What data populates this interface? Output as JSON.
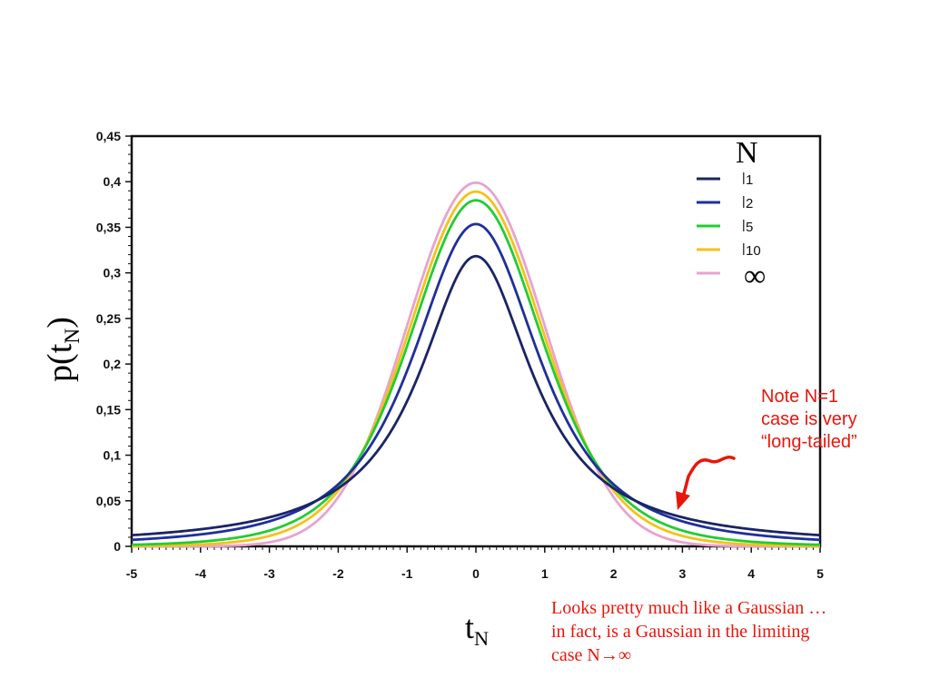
{
  "chart_data": {
    "type": "line",
    "xlabel": "t",
    "xlabel_sub": "N",
    "ylabel": "p(t",
    "ylabel_sub": "N",
    "ylabel_close": ")",
    "xlim": [
      -5,
      5
    ],
    "ylim": [
      0,
      0.45
    ],
    "x_ticks": [
      "-5",
      "-4",
      "-3",
      "-2",
      "-1",
      "0",
      "1",
      "2",
      "3",
      "4",
      "5"
    ],
    "y_ticks": [
      "0",
      "0,05",
      "0,1",
      "0,15",
      "0,2",
      "0,25",
      "0,3",
      "0,35",
      "0,4",
      "0,45"
    ],
    "legend_title": "N",
    "legend_placement": "top-right",
    "series": [
      {
        "name": "1",
        "color": "#1a2466",
        "df": 1,
        "x": [
          -5,
          -4,
          -3,
          -2,
          -1,
          0,
          1,
          2,
          3,
          4,
          5
        ],
        "y": [
          0.012,
          0.019,
          0.032,
          0.064,
          0.159,
          0.318,
          0.159,
          0.064,
          0.032,
          0.019,
          0.012
        ]
      },
      {
        "name": "2",
        "color": "#1f2f9c",
        "df": 2,
        "x": [
          -5,
          -4,
          -3,
          -2,
          -1,
          0,
          1,
          2,
          3,
          4,
          5
        ],
        "y": [
          0.007,
          0.013,
          0.027,
          0.068,
          0.192,
          0.354,
          0.192,
          0.068,
          0.027,
          0.013,
          0.007
        ]
      },
      {
        "name": "5",
        "color": "#22cc33",
        "df": 5,
        "x": [
          -5,
          -4,
          -3,
          -2,
          -1,
          0,
          1,
          2,
          3,
          4,
          5
        ],
        "y": [
          0.002,
          0.005,
          0.017,
          0.065,
          0.22,
          0.38,
          0.22,
          0.065,
          0.017,
          0.005,
          0.002
        ]
      },
      {
        "name": "10",
        "color": "#f2c318",
        "df": 10,
        "x": [
          -5,
          -4,
          -3,
          -2,
          -1,
          0,
          1,
          2,
          3,
          4,
          5
        ],
        "y": [
          0.0,
          0.002,
          0.011,
          0.061,
          0.23,
          0.389,
          0.23,
          0.061,
          0.011,
          0.002,
          0.0
        ]
      },
      {
        "name": "∞",
        "color": "#e8a3cf",
        "df": null,
        "x": [
          -5,
          -4,
          -3,
          -2,
          -1,
          0,
          1,
          2,
          3,
          4,
          5
        ],
        "y": [
          0.0,
          0.0,
          0.004,
          0.054,
          0.242,
          0.399,
          0.242,
          0.054,
          0.004,
          0.0,
          0.0
        ]
      }
    ],
    "legend_labels": [
      "1",
      "2",
      "5",
      "10"
    ],
    "legend_infinity": "∞"
  },
  "annotations": {
    "note": "Note N=1\ncase is very\n“long-tailed”",
    "note_color": "#e8160b",
    "caption": "Looks pretty much like a Gaussian …\nin fact, is a Gaussian in the limiting\ncase N→∞",
    "caption_color": "#e8160b"
  }
}
